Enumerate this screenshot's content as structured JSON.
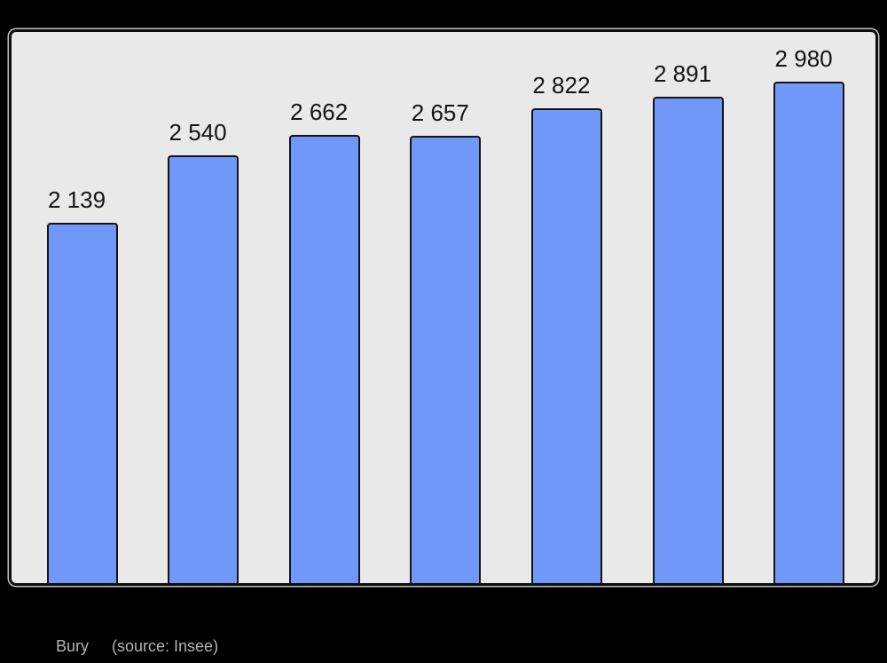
{
  "chart_data": {
    "type": "bar",
    "title": "",
    "values": [
      2139,
      2540,
      2662,
      2657,
      2822,
      2891,
      2980
    ],
    "bar_labels": [
      "2 139",
      "2 540",
      "2 662",
      "2 657",
      "2 822",
      "2 891",
      "2 980"
    ],
    "xlabel": "",
    "ylabel": "",
    "ylim": [
      0,
      3275
    ],
    "grid": false,
    "legend": "none",
    "data_labels_position": "above-bars",
    "bar_color": "#7098f8",
    "bar_border_color": "#141414",
    "plot_background": "#e9e9e9",
    "page_background": "#000000",
    "value_label_color": "#141414",
    "caption": {
      "place": "Bury",
      "source": "(source: Insee)",
      "color": "#b3b3b3"
    }
  }
}
